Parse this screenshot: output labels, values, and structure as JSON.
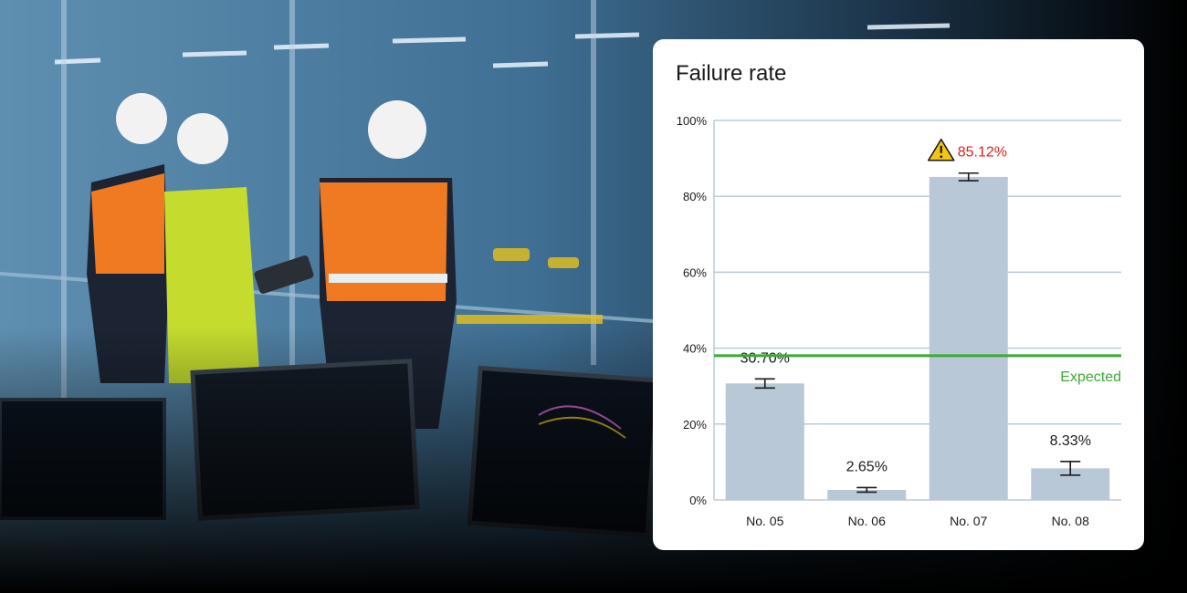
{
  "card": {
    "title": "Failure rate"
  },
  "chart_data": {
    "type": "bar",
    "title": "Failure rate",
    "xlabel": "",
    "ylabel": "",
    "categories": [
      "No. 05",
      "No. 06",
      "No. 07",
      "No. 08"
    ],
    "values": [
      30.7,
      2.65,
      85.12,
      8.33
    ],
    "value_labels": [
      "30.70%",
      "2.65%",
      "85.12%",
      "8.33%"
    ],
    "error_bars": [
      1.2,
      0.6,
      1.0,
      1.8
    ],
    "alert_index": 2,
    "ylim": [
      0,
      100
    ],
    "yticks": [
      0,
      20,
      40,
      60,
      80,
      100
    ],
    "ytick_labels": [
      "0%",
      "20%",
      "40%",
      "60%",
      "80%",
      "100%"
    ],
    "grid": true,
    "reference_line": {
      "label": "Expected",
      "value": 38
    },
    "colors": {
      "bar": "#b9c8d6",
      "grid": "#bccbd8",
      "expected": "#3aaa35",
      "alert": "#e0201a",
      "warning": "#f3c316"
    }
  }
}
